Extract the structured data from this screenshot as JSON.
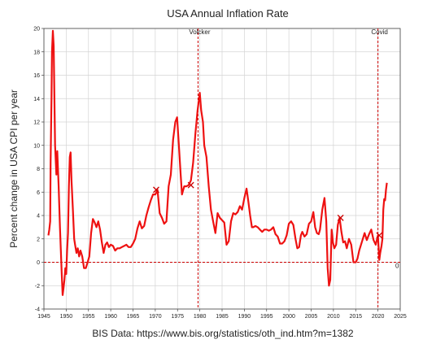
{
  "chart_data": {
    "type": "line",
    "title": "USA Annual Inflation Rate",
    "xlabel": "",
    "ylabel": "Percent change in USA CPI per year",
    "source": "BIS Data: https://www.bis.org/statistics/oth_ind.htm?m=1382",
    "xlim": [
      1945,
      2025
    ],
    "ylim": [
      -4,
      20
    ],
    "xticks": [
      "1945",
      "1950",
      "1955",
      "1960",
      "1965",
      "1970",
      "1975",
      "1980",
      "1985",
      "1990",
      "1995",
      "2000",
      "2005",
      "2010",
      "2015",
      "2020",
      "2025"
    ],
    "yticks": [
      "20",
      "18",
      "16",
      "14",
      "12",
      "10",
      "8",
      "6",
      "4",
      "2",
      "0",
      "-2",
      "-4"
    ],
    "grid": true,
    "line_color": "#ee1111",
    "ref_color": "#cc0000",
    "zero_line_label": "0",
    "annotations": [
      {
        "label": "Volcker",
        "x": 1979.6
      },
      {
        "label": "Covid",
        "x": 2020.0
      }
    ],
    "markers": [
      {
        "x": 1970.2,
        "y": 6.2
      },
      {
        "x": 1978.0,
        "y": 6.6
      },
      {
        "x": 2011.6,
        "y": 3.8
      },
      {
        "x": 2020.3,
        "y": 2.3
      }
    ],
    "series": [
      {
        "x": [
          1946.0,
          1946.2,
          1946.4,
          1946.5,
          1946.7,
          1946.8,
          1947.0,
          1947.2,
          1947.5,
          1947.8,
          1948.0,
          1948.3,
          1948.6,
          1948.8,
          1949.0,
          1949.2,
          1949.4,
          1949.6,
          1949.8,
          1950.0,
          1950.2,
          1950.4,
          1950.6,
          1950.8,
          1951.0,
          1951.2,
          1951.5,
          1951.8,
          1952.0,
          1952.3,
          1952.6,
          1952.9,
          1953.2,
          1953.6,
          1954.0,
          1954.4,
          1954.8,
          1955.2,
          1955.6,
          1956.0,
          1956.4,
          1956.8,
          1957.2,
          1957.6,
          1958.0,
          1958.4,
          1958.8,
          1959.2,
          1959.6,
          1960.0,
          1960.5,
          1961.0,
          1961.5,
          1962.0,
          1962.5,
          1963.0,
          1963.5,
          1964.0,
          1964.5,
          1965.0,
          1965.5,
          1966.0,
          1966.5,
          1967.0,
          1967.5,
          1968.0,
          1968.5,
          1969.0,
          1969.5,
          1970.0,
          1970.5,
          1971.0,
          1971.5,
          1972.0,
          1972.5,
          1973.0,
          1973.5,
          1974.0,
          1974.5,
          1974.9,
          1975.3,
          1975.7,
          1976.0,
          1976.5,
          1977.0,
          1977.5,
          1978.0,
          1978.5,
          1979.0,
          1979.5,
          1980.0,
          1980.3,
          1980.7,
          1981.0,
          1981.5,
          1982.0,
          1982.5,
          1983.0,
          1983.5,
          1984.0,
          1984.5,
          1985.0,
          1985.5,
          1986.0,
          1986.5,
          1987.0,
          1987.5,
          1988.0,
          1988.5,
          1989.0,
          1989.5,
          1990.0,
          1990.5,
          1990.9,
          1991.3,
          1991.7,
          1992.0,
          1992.5,
          1993.0,
          1993.5,
          1994.0,
          1994.5,
          1995.0,
          1995.5,
          1996.0,
          1996.5,
          1997.0,
          1997.5,
          1998.0,
          1998.5,
          1999.0,
          1999.5,
          2000.0,
          2000.5,
          2001.0,
          2001.5,
          2001.9,
          2002.3,
          2002.7,
          2003.0,
          2003.5,
          2004.0,
          2004.5,
          2005.0,
          2005.5,
          2005.9,
          2006.3,
          2006.7,
          2007.0,
          2007.5,
          2008.0,
          2008.4,
          2008.7,
          2009.0,
          2009.3,
          2009.6,
          2009.9,
          2010.2,
          2010.6,
          2011.0,
          2011.4,
          2011.8,
          2012.2,
          2012.6,
          2013.0,
          2013.5,
          2014.0,
          2014.5,
          2015.0,
          2015.4,
          2015.8,
          2016.2,
          2016.6,
          2017.0,
          2017.5,
          2018.0,
          2018.5,
          2019.0,
          2019.5,
          2020.0,
          2020.3,
          2020.5,
          2020.8,
          2021.0,
          2021.2,
          2021.4,
          2021.6,
          2021.8,
          2022.0
        ],
        "y": [
          2.3,
          2.8,
          3.5,
          8.5,
          14.0,
          18.0,
          19.8,
          18.5,
          10.0,
          7.5,
          9.5,
          6.5,
          3.0,
          1.0,
          -1.0,
          -2.8,
          -2.2,
          -1.5,
          -0.5,
          -1.0,
          1.0,
          2.5,
          6.5,
          9.0,
          9.4,
          7.0,
          4.5,
          2.0,
          1.5,
          0.8,
          1.2,
          0.5,
          1.0,
          0.5,
          -0.5,
          -0.5,
          0.0,
          0.5,
          2.5,
          3.7,
          3.4,
          3.0,
          3.5,
          2.8,
          1.7,
          0.8,
          1.5,
          1.7,
          1.3,
          1.5,
          1.4,
          1.0,
          1.2,
          1.2,
          1.3,
          1.4,
          1.5,
          1.3,
          1.3,
          1.6,
          2.0,
          2.9,
          3.5,
          2.9,
          3.1,
          4.0,
          4.7,
          5.3,
          5.8,
          5.8,
          6.2,
          4.2,
          3.8,
          3.3,
          3.5,
          6.5,
          7.5,
          10.5,
          12.0,
          12.4,
          10.0,
          7.5,
          5.8,
          6.5,
          6.5,
          6.6,
          7.0,
          8.5,
          11.0,
          13.0,
          14.5,
          13.0,
          12.0,
          10.0,
          9.0,
          6.5,
          4.5,
          3.5,
          2.5,
          4.2,
          3.8,
          3.6,
          3.4,
          1.5,
          1.8,
          3.5,
          4.2,
          4.1,
          4.3,
          4.8,
          4.5,
          5.5,
          6.3,
          5.2,
          4.0,
          3.0,
          3.0,
          3.1,
          3.0,
          2.8,
          2.6,
          2.8,
          2.8,
          2.7,
          2.8,
          3.0,
          2.4,
          2.2,
          1.6,
          1.6,
          1.8,
          2.3,
          3.3,
          3.5,
          3.2,
          2.0,
          1.2,
          1.3,
          2.3,
          2.6,
          2.2,
          2.4,
          3.3,
          3.5,
          4.3,
          3.0,
          2.5,
          2.4,
          2.8,
          4.5,
          5.5,
          3.5,
          -0.5,
          -2.0,
          -1.5,
          2.8,
          1.7,
          1.2,
          1.5,
          3.2,
          3.8,
          2.6,
          1.7,
          1.8,
          1.2,
          2.0,
          1.5,
          0.0,
          0.0,
          0.3,
          1.0,
          1.5,
          2.0,
          2.5,
          1.9,
          2.4,
          2.8,
          1.9,
          1.5,
          2.3,
          0.2,
          0.8,
          1.4,
          2.0,
          4.5,
          5.4,
          5.3,
          6.2,
          6.8
        ]
      }
    ]
  }
}
